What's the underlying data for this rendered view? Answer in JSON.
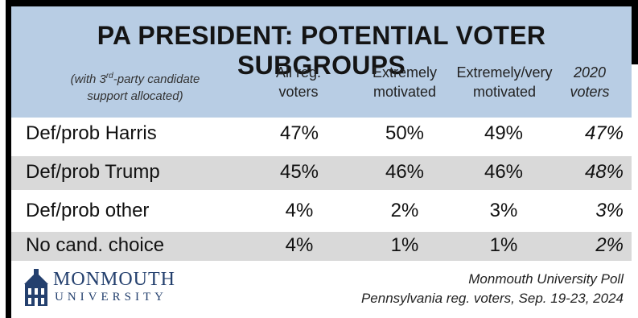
{
  "title": "PA PRESIDENT: POTENTIAL VOTER SUBGROUPS",
  "note": {
    "line1_pre": "(with 3",
    "line1_sup": "rd",
    "line1_post": "-party candidate",
    "line2": "support allocated)"
  },
  "columns": [
    {
      "line1": "All reg.",
      "line2": "voters"
    },
    {
      "line1": "Extremely",
      "line2": "motivated"
    },
    {
      "line1": "Extremely/very",
      "line2": "motivated"
    },
    {
      "line1": "2020",
      "line2": "voters"
    }
  ],
  "rows": [
    {
      "label": "Def/prob Harris",
      "values": [
        "47%",
        "50%",
        "49%",
        "47%"
      ]
    },
    {
      "label": "Def/prob Trump",
      "values": [
        "45%",
        "46%",
        "46%",
        "48%"
      ]
    },
    {
      "label": "Def/prob other",
      "values": [
        "4%",
        "2%",
        "3%",
        "3%"
      ]
    },
    {
      "label": "No cand. choice",
      "values": [
        "4%",
        "1%",
        "1%",
        "2%"
      ]
    }
  ],
  "logo": {
    "name": "MONMOUTH",
    "sub": "UNIVERSITY",
    "icon": "building-icon"
  },
  "source": {
    "line1": "Monmouth University Poll",
    "line2": "Pennsylvania reg. voters, Sep. 19-23, 2024"
  },
  "colors": {
    "header_band": "#b8cde4",
    "shaded_row": "#d9d9d9",
    "logo": "#24406e"
  },
  "chart_data": {
    "type": "table",
    "title": "PA PRESIDENT: POTENTIAL VOTER SUBGROUPS",
    "columns": [
      "All reg. voters",
      "Extremely motivated",
      "Extremely/very motivated",
      "2020 voters"
    ],
    "rows": [
      {
        "label": "Def/prob Harris",
        "values": [
          47,
          50,
          49,
          47
        ]
      },
      {
        "label": "Def/prob Trump",
        "values": [
          45,
          46,
          46,
          48
        ]
      },
      {
        "label": "Def/prob other",
        "values": [
          4,
          2,
          3,
          3
        ]
      },
      {
        "label": "No cand. choice",
        "values": [
          4,
          1,
          1,
          2
        ]
      }
    ],
    "unit": "%"
  }
}
